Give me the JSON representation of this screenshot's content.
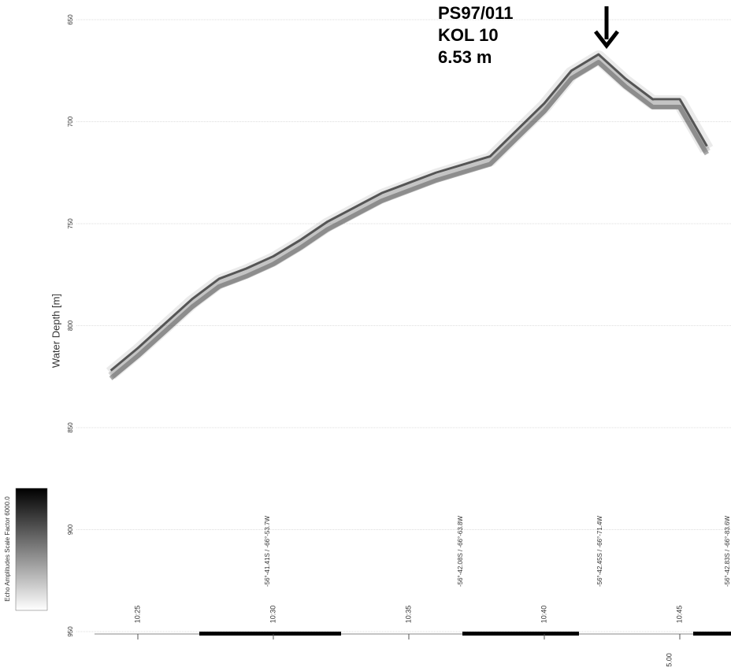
{
  "chart_data": {
    "type": "line",
    "y_label": "Water Depth [m]",
    "annotation": [
      "PS97/011",
      "KOL 10",
      "6.53 m"
    ],
    "colorbar_label": "Echo Amplitudes   Scale Factor   6000.0",
    "positions": [
      "-56°-41.41S / -66°-53.7W",
      "-56°-42.08S / -66°-63.8W",
      "-56°-42.45S / -66°-71.4W",
      "-56°-42.83S / -66°-83.6W"
    ],
    "scale_note": "5.00",
    "x": [
      "10:24",
      "10:25",
      "10:26",
      "10:27",
      "10:28",
      "10:29",
      "10:30",
      "10:31",
      "10:32",
      "10:33",
      "10:34",
      "10:35",
      "10:36",
      "10:37",
      "10:38",
      "10:39",
      "10:40",
      "10:41",
      "10:42",
      "10:43",
      "10:44",
      "10:45",
      "10:46"
    ],
    "series": [
      {
        "color": "#555555",
        "values": [
          822,
          811,
          799,
          787,
          777,
          772,
          766,
          758,
          749,
          742,
          735,
          730,
          725,
          721,
          717,
          704,
          691,
          675,
          667,
          679,
          689,
          689,
          712
        ]
      }
    ],
    "xticks": [
      "10:25",
      "10:30",
      "10:35",
      "10:40",
      "10:45"
    ],
    "ylim": [
      650,
      950
    ],
    "yticks": [
      650,
      700,
      750,
      800,
      850,
      900,
      950
    ],
    "y_inverted": true,
    "grid": true
  }
}
